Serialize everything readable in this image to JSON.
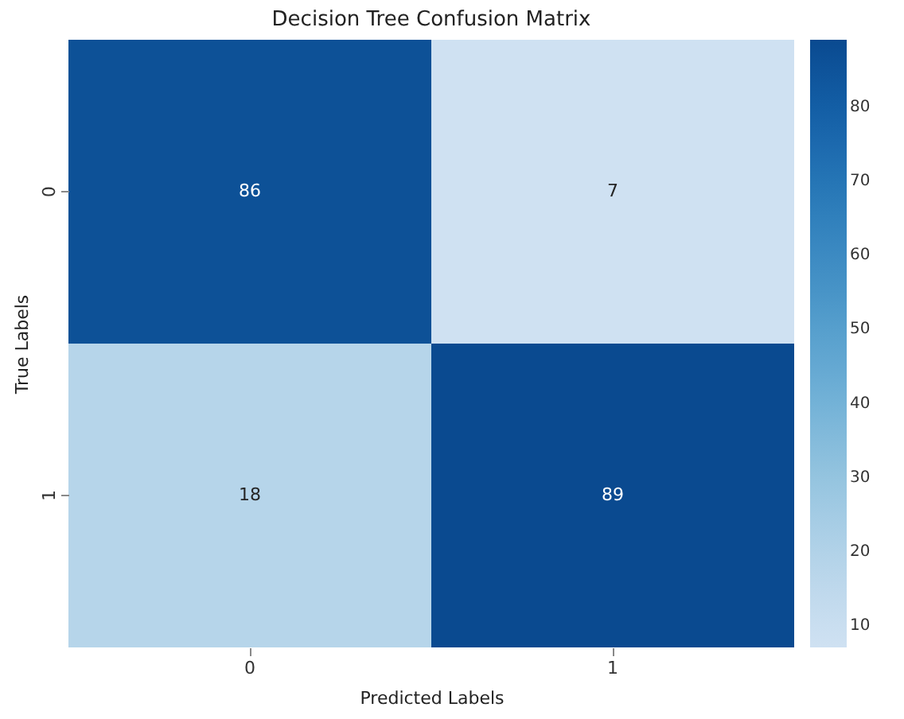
{
  "chart_data": {
    "type": "heatmap",
    "title": "Decision Tree Confusion Matrix",
    "xlabel": "Predicted Labels",
    "ylabel": "True Labels",
    "categories": [
      "0",
      "1"
    ],
    "y_categories": [
      "0",
      "1"
    ],
    "cells": [
      [
        86,
        7
      ],
      [
        18,
        89
      ]
    ],
    "clim": [
      7,
      89
    ],
    "cticks": [
      10,
      20,
      30,
      40,
      50,
      60,
      70,
      80
    ],
    "data_labels": true
  }
}
